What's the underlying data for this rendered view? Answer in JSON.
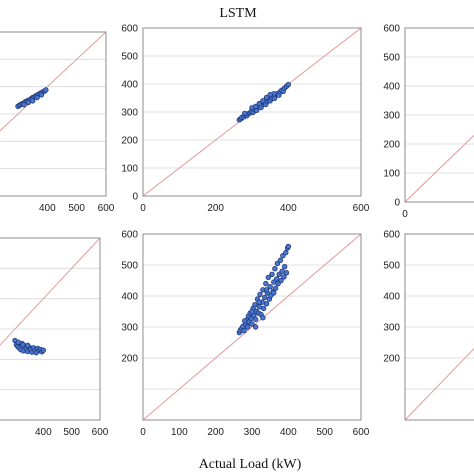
{
  "figure": {
    "title": "LSTM",
    "xlabel": "Actual Load (kW)"
  },
  "chart_data": [
    {
      "id": "top-left",
      "type": "scatter",
      "grid": true,
      "xlim": [
        0,
        600
      ],
      "ylim": [
        0,
        600
      ],
      "xticks": [
        "400",
        "500",
        "600"
      ],
      "yticks": [],
      "diagonal": true,
      "points": [
        [
          300,
          328
        ],
        [
          305,
          332
        ],
        [
          310,
          335
        ],
        [
          315,
          338
        ],
        [
          320,
          340
        ],
        [
          325,
          345
        ],
        [
          330,
          347
        ],
        [
          335,
          350
        ],
        [
          340,
          352
        ],
        [
          345,
          356
        ],
        [
          350,
          360
        ],
        [
          355,
          362
        ],
        [
          360,
          366
        ],
        [
          365,
          368
        ],
        [
          370,
          372
        ],
        [
          375,
          375
        ],
        [
          380,
          378
        ],
        [
          385,
          381
        ],
        [
          390,
          384
        ],
        [
          395,
          388
        ],
        [
          320,
          334
        ],
        [
          335,
          342
        ],
        [
          350,
          348
        ],
        [
          365,
          360
        ],
        [
          380,
          370
        ]
      ]
    },
    {
      "id": "top-center",
      "type": "scatter",
      "grid": true,
      "xlim": [
        0,
        600
      ],
      "ylim": [
        0,
        600
      ],
      "xticks": [
        "0",
        "200",
        "400",
        "600"
      ],
      "yticks": [
        "0",
        "100",
        "200",
        "300",
        "400",
        "500",
        "600"
      ],
      "diagonal": true,
      "points": [
        [
          265,
          272
        ],
        [
          270,
          276
        ],
        [
          272,
          281
        ],
        [
          278,
          283
        ],
        [
          282,
          290
        ],
        [
          286,
          287
        ],
        [
          290,
          294
        ],
        [
          295,
          297
        ],
        [
          298,
          302
        ],
        [
          303,
          299
        ],
        [
          306,
          308
        ],
        [
          310,
          312
        ],
        [
          313,
          306
        ],
        [
          318,
          318
        ],
        [
          322,
          322
        ],
        [
          325,
          316
        ],
        [
          330,
          328
        ],
        [
          334,
          333
        ],
        [
          338,
          327
        ],
        [
          342,
          338
        ],
        [
          346,
          344
        ],
        [
          350,
          340
        ],
        [
          354,
          350
        ],
        [
          358,
          356
        ],
        [
          362,
          349
        ],
        [
          366,
          362
        ],
        [
          370,
          366
        ],
        [
          374,
          360
        ],
        [
          378,
          372
        ],
        [
          382,
          378
        ],
        [
          386,
          374
        ],
        [
          390,
          386
        ],
        [
          395,
          392
        ],
        [
          400,
          398
        ],
        [
          300,
          315
        ],
        [
          320,
          330
        ],
        [
          340,
          352
        ],
        [
          360,
          365
        ],
        [
          280,
          295
        ],
        [
          350,
          362
        ],
        [
          330,
          340
        ],
        [
          310,
          320
        ]
      ]
    },
    {
      "id": "top-right",
      "type": "scatter",
      "grid": true,
      "xlim": [
        0,
        600
      ],
      "ylim": [
        0,
        600
      ],
      "xticks": [
        "0"
      ],
      "yticks": [
        "0",
        "100",
        "200",
        "300",
        "400",
        "500",
        "600"
      ],
      "diagonal": true,
      "points": []
    },
    {
      "id": "bottom-left",
      "type": "scatter",
      "grid": true,
      "xlim": [
        0,
        600
      ],
      "ylim": [
        0,
        600
      ],
      "xticks": [
        "400",
        "500",
        "600"
      ],
      "yticks": [],
      "diagonal": true,
      "points": [
        [
          300,
          262
        ],
        [
          305,
          248
        ],
        [
          310,
          242
        ],
        [
          315,
          238
        ],
        [
          320,
          232
        ],
        [
          325,
          252
        ],
        [
          330,
          228
        ],
        [
          335,
          244
        ],
        [
          340,
          236
        ],
        [
          345,
          226
        ],
        [
          350,
          240
        ],
        [
          355,
          232
        ],
        [
          360,
          224
        ],
        [
          365,
          238
        ],
        [
          370,
          230
        ],
        [
          375,
          222
        ],
        [
          380,
          236
        ],
        [
          385,
          228
        ],
        [
          390,
          232
        ],
        [
          395,
          225
        ],
        [
          400,
          230
        ],
        [
          312,
          256
        ],
        [
          328,
          248
        ],
        [
          345,
          246
        ]
      ]
    },
    {
      "id": "bottom-center",
      "type": "scatter",
      "grid": true,
      "xlim": [
        0,
        600
      ],
      "ylim": [
        0,
        600
      ],
      "xticks": [
        "0",
        "100",
        "200",
        "300",
        "400",
        "500",
        "600"
      ],
      "yticks": [
        "200",
        "300",
        "400",
        "500",
        "600"
      ],
      "diagonal": true,
      "points": [
        [
          265,
          282
        ],
        [
          268,
          290
        ],
        [
          272,
          296
        ],
        [
          275,
          302
        ],
        [
          278,
          288
        ],
        [
          282,
          310
        ],
        [
          285,
          322
        ],
        [
          288,
          300
        ],
        [
          290,
          335
        ],
        [
          292,
          316
        ],
        [
          295,
          345
        ],
        [
          298,
          328
        ],
        [
          300,
          310
        ],
        [
          303,
          360
        ],
        [
          305,
          338
        ],
        [
          308,
          372
        ],
        [
          310,
          325
        ],
        [
          312,
          350
        ],
        [
          315,
          390
        ],
        [
          318,
          345
        ],
        [
          320,
          365
        ],
        [
          322,
          405
        ],
        [
          325,
          340
        ],
        [
          328,
          380
        ],
        [
          330,
          420
        ],
        [
          332,
          360
        ],
        [
          335,
          395
        ],
        [
          338,
          440
        ],
        [
          340,
          375
        ],
        [
          342,
          410
        ],
        [
          345,
          460
        ],
        [
          348,
          390
        ],
        [
          350,
          430
        ],
        [
          352,
          402
        ],
        [
          355,
          470
        ],
        [
          358,
          415
        ],
        [
          360,
          445
        ],
        [
          363,
          488
        ],
        [
          365,
          425
        ],
        [
          368,
          455
        ],
        [
          370,
          505
        ],
        [
          372,
          440
        ],
        [
          375,
          470
        ],
        [
          378,
          515
        ],
        [
          380,
          450
        ],
        [
          383,
          480
        ],
        [
          385,
          530
        ],
        [
          388,
          462
        ],
        [
          390,
          495
        ],
        [
          393,
          540
        ],
        [
          395,
          475
        ],
        [
          398,
          555
        ],
        [
          400,
          560
        ],
        [
          280,
          320
        ],
        [
          300,
          350
        ],
        [
          320,
          380
        ],
        [
          340,
          420
        ],
        [
          360,
          410
        ],
        [
          310,
          300
        ],
        [
          330,
          330
        ]
      ]
    },
    {
      "id": "bottom-right",
      "type": "scatter",
      "grid": true,
      "xlim": [
        0,
        600
      ],
      "ylim": [
        0,
        600
      ],
      "xticks": [],
      "yticks": [
        "200",
        "300",
        "400",
        "500",
        "600"
      ],
      "diagonal": true,
      "points": []
    }
  ]
}
